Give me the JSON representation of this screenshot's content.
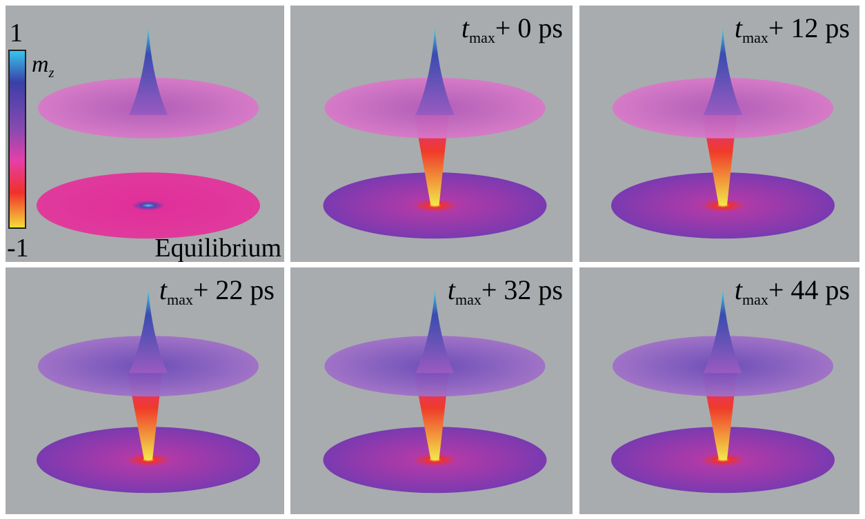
{
  "colorbar": {
    "max": "1",
    "min": "-1",
    "var": "m",
    "var_sub": "z"
  },
  "panels": [
    {
      "label": "Equilibrium"
    },
    {
      "label_var": "t",
      "label_sub": "max",
      "label_rest": "+ 0 ps"
    },
    {
      "label_var": "t",
      "label_sub": "max",
      "label_rest": "+ 12 ps"
    },
    {
      "label_var": "t",
      "label_sub": "max",
      "label_rest": "+ 22 ps"
    },
    {
      "label_var": "t",
      "label_sub": "max",
      "label_rest": "+ 32 ps"
    },
    {
      "label_var": "t",
      "label_sub": "max",
      "label_rest": "+ 44 ps"
    }
  ]
}
